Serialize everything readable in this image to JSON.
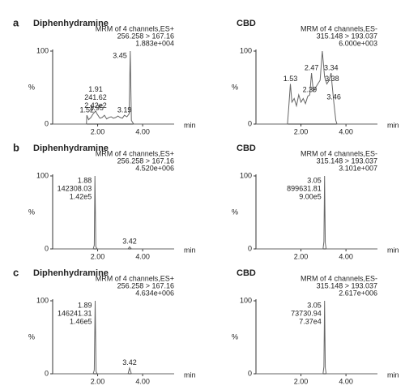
{
  "chart_data": [
    {
      "type": "line",
      "panel_label": "a",
      "title": "Diphenhydramine",
      "info": [
        "MRM of 4 channels,ES+",
        "256.258 > 167.16",
        "1.883e+004"
      ],
      "xlabel": "min",
      "ylabel": "%",
      "color": "#666",
      "xlim": [
        0,
        5.4
      ],
      "xticks": [
        {
          "value": 2,
          "label": "2.00"
        },
        {
          "value": 4,
          "label": "4.00"
        }
      ],
      "ylim": [
        0,
        100
      ],
      "yticks": [
        0,
        100
      ],
      "x": [
        0,
        1.4,
        1.5,
        1.52,
        1.6,
        1.7,
        1.8,
        1.91,
        1.95,
        2.1,
        2.2,
        2.3,
        2.4,
        2.5,
        2.6,
        2.7,
        2.8,
        2.9,
        3.0,
        3.1,
        3.19,
        3.3,
        3.4,
        3.45,
        3.5,
        3.6,
        4.0,
        5.4
      ],
      "values": [
        0,
        0,
        0,
        12,
        6,
        9,
        14,
        18,
        15,
        8,
        9,
        12,
        7,
        9,
        10,
        8,
        9,
        11,
        9,
        8,
        12,
        10,
        14,
        100,
        5,
        0,
        0,
        0
      ],
      "annotations": [
        {
          "x": 1.52,
          "lines": [
            "1.52"
          ]
        },
        {
          "x": 1.91,
          "lines": [
            "1.91",
            "241.62",
            "2.42e2"
          ]
        },
        {
          "x": 1.95,
          "lines": [
            "1.95"
          ]
        },
        {
          "x": 3.19,
          "lines": [
            "3.19"
          ]
        },
        {
          "x": 3.45,
          "lines": [
            "3.45"
          ]
        }
      ]
    },
    {
      "type": "line",
      "title": "CBD",
      "info": [
        "MRM of 4 channels,ES-",
        "315.148 > 193.037",
        "6.000e+003"
      ],
      "xlabel": "min",
      "ylabel": "%",
      "color": "#666",
      "xlim": [
        0,
        5.4
      ],
      "xticks": [
        {
          "value": 2,
          "label": "2.00"
        },
        {
          "value": 4,
          "label": "4.00"
        }
      ],
      "ylim": [
        0,
        100
      ],
      "yticks": [
        0,
        100
      ],
      "x": [
        0,
        1.4,
        1.45,
        1.53,
        1.6,
        1.7,
        1.8,
        1.9,
        2.0,
        2.1,
        2.2,
        2.3,
        2.39,
        2.47,
        2.55,
        2.65,
        2.75,
        2.85,
        2.95,
        3.05,
        3.15,
        3.25,
        3.34,
        3.38,
        3.46,
        3.55,
        3.6,
        5.4
      ],
      "values": [
        0,
        0,
        20,
        55,
        30,
        35,
        25,
        40,
        30,
        35,
        28,
        38,
        40,
        70,
        45,
        50,
        55,
        60,
        100,
        65,
        55,
        60,
        70,
        55,
        30,
        5,
        0,
        0
      ],
      "annotations": [
        {
          "x": 1.53,
          "lines": [
            "1.53"
          ]
        },
        {
          "x": 2.39,
          "lines": [
            "2.39"
          ]
        },
        {
          "x": 2.47,
          "lines": [
            "2.47"
          ]
        },
        {
          "x": 3.34,
          "lines": [
            "3.34"
          ]
        },
        {
          "x": 3.38,
          "lines": [
            "3.38"
          ]
        },
        {
          "x": 3.46,
          "lines": [
            "3.46"
          ]
        }
      ]
    },
    {
      "type": "line",
      "panel_label": "b",
      "title": "Diphenhydramine",
      "info": [
        "MRM of 4 channels,ES+",
        "256.258 > 167.16",
        "4.520e+006"
      ],
      "xlabel": "min",
      "ylabel": "%",
      "color": "#666",
      "xlim": [
        0,
        5.4
      ],
      "xticks": [
        {
          "value": 2,
          "label": "2.00"
        },
        {
          "value": 4,
          "label": "4.00"
        }
      ],
      "ylim": [
        0,
        100
      ],
      "yticks": [
        0,
        100
      ],
      "x": [
        0,
        1.8,
        1.85,
        1.88,
        1.92,
        1.98,
        3.35,
        3.42,
        3.5,
        5.4
      ],
      "values": [
        0,
        0,
        5,
        100,
        3,
        0,
        0,
        3,
        0,
        0
      ],
      "annotations": [
        {
          "x": 1.88,
          "lines": [
            "1.88",
            "142308.03",
            "1.42e5"
          ]
        },
        {
          "x": 3.42,
          "lines": [
            "3.42"
          ]
        }
      ]
    },
    {
      "type": "line",
      "title": "CBD",
      "info": [
        "MRM of 4 channels,ES-",
        "315.148 > 193.037",
        "3.101e+007"
      ],
      "xlabel": "min",
      "ylabel": "%",
      "color": "#666",
      "xlim": [
        0,
        5.4
      ],
      "xticks": [
        {
          "value": 2,
          "label": "2.00"
        },
        {
          "value": 4,
          "label": "4.00"
        }
      ],
      "ylim": [
        0,
        100
      ],
      "yticks": [
        0,
        100
      ],
      "x": [
        0,
        2.98,
        3.02,
        3.05,
        3.08,
        3.12,
        5.4
      ],
      "values": [
        0,
        0,
        10,
        100,
        8,
        0,
        0
      ],
      "annotations": [
        {
          "x": 3.05,
          "lines": [
            "3.05",
            "899631.81",
            "9.00e5"
          ]
        }
      ]
    },
    {
      "type": "line",
      "panel_label": "c",
      "title": "Diphenhydramine",
      "info": [
        "MRM of 4 channels,ES+",
        "256.258 > 167.16",
        "4.634e+006"
      ],
      "xlabel": "min",
      "ylabel": "%",
      "color": "#666",
      "xlim": [
        0,
        5.4
      ],
      "xticks": [
        {
          "value": 2,
          "label": "2.00"
        },
        {
          "value": 4,
          "label": "4.00"
        }
      ],
      "ylim": [
        0,
        100
      ],
      "yticks": [
        0,
        100
      ],
      "x": [
        0,
        1.8,
        1.85,
        1.89,
        1.93,
        1.98,
        3.35,
        3.42,
        3.5,
        5.4
      ],
      "values": [
        0,
        0,
        5,
        100,
        3,
        0,
        0,
        8,
        0,
        0
      ],
      "annotations": [
        {
          "x": 1.89,
          "lines": [
            "1.89",
            "146241.31",
            "1.46e5"
          ]
        },
        {
          "x": 3.42,
          "lines": [
            "3.42"
          ]
        }
      ]
    },
    {
      "type": "line",
      "title": "CBD",
      "info": [
        "MRM of 4 channels,ES-",
        "315.148 > 193.037",
        "2.617e+006"
      ],
      "xlabel": "min",
      "ylabel": "%",
      "color": "#666",
      "xlim": [
        0,
        5.4
      ],
      "xticks": [
        {
          "value": 2,
          "label": "2.00"
        },
        {
          "value": 4,
          "label": "4.00"
        }
      ],
      "ylim": [
        0,
        100
      ],
      "yticks": [
        0,
        100
      ],
      "x": [
        0,
        2.98,
        3.02,
        3.05,
        3.08,
        3.12,
        5.4
      ],
      "values": [
        0,
        0,
        10,
        100,
        8,
        0,
        0
      ],
      "annotations": [
        {
          "x": 3.05,
          "lines": [
            "3.05",
            "73730.94",
            "7.37e4"
          ]
        }
      ]
    }
  ]
}
